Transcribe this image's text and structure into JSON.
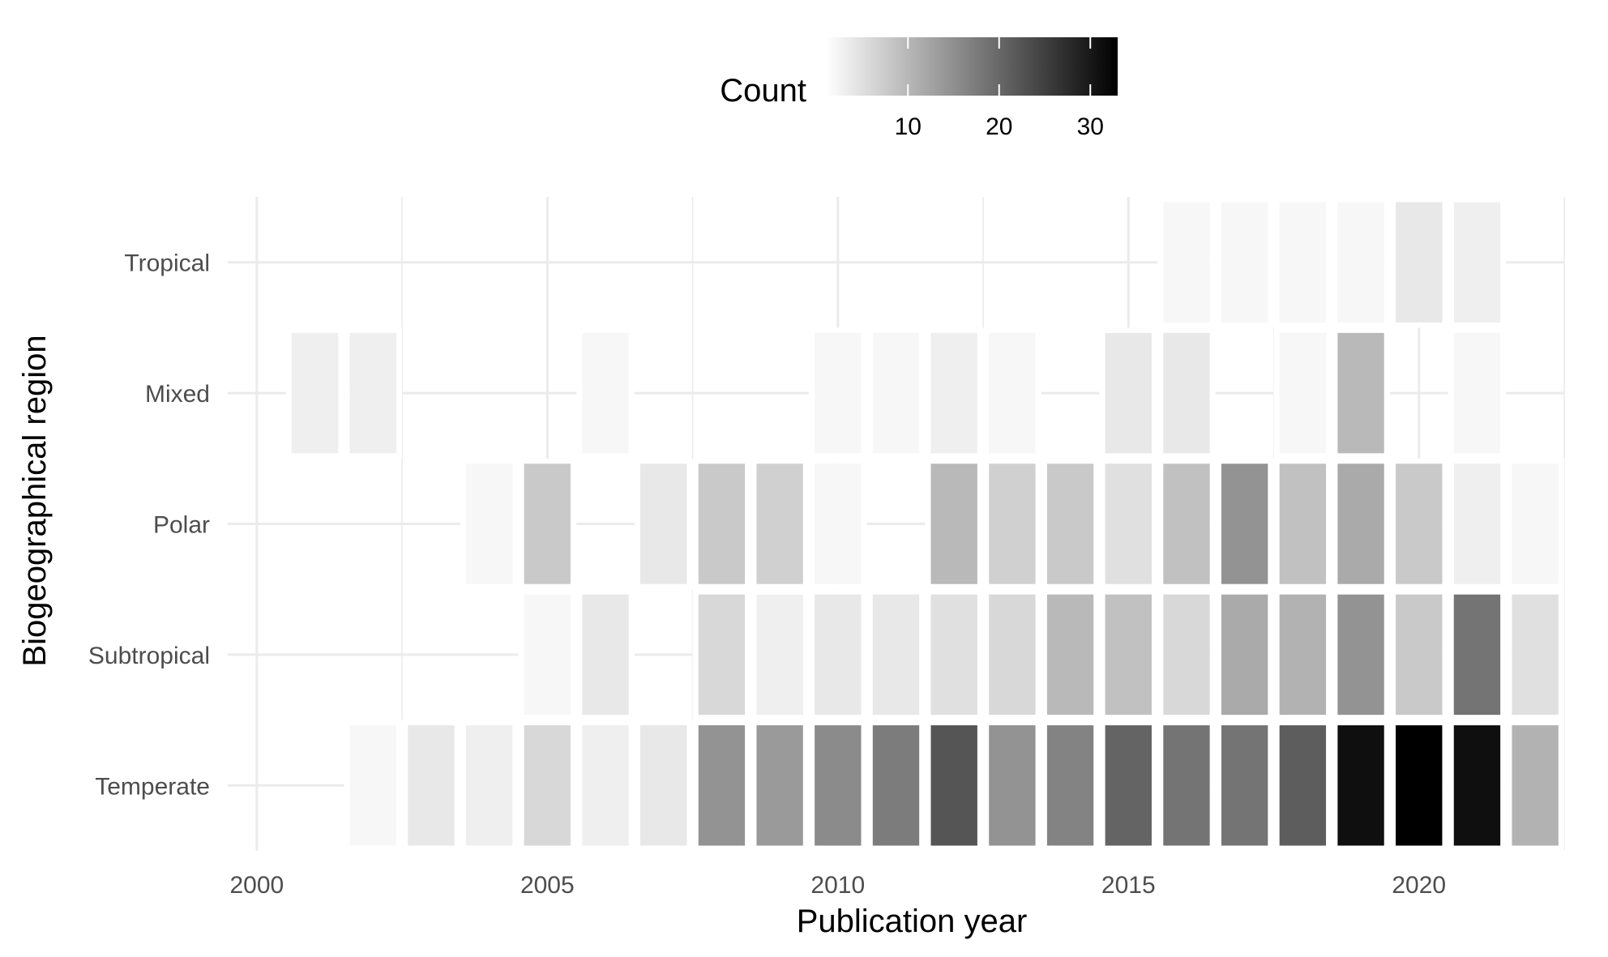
{
  "chart_data": {
    "type": "heatmap",
    "xlabel": "Publication year",
    "ylabel": "Biogeographical region",
    "x": [
      2001,
      2002,
      2003,
      2004,
      2005,
      2006,
      2007,
      2008,
      2009,
      2010,
      2011,
      2012,
      2013,
      2014,
      2015,
      2016,
      2017,
      2018,
      2019,
      2020,
      2021,
      2022
    ],
    "x_ticks": [
      "2000",
      "2005",
      "2010",
      "2015",
      "2020"
    ],
    "x_tick_values": [
      2000,
      2005,
      2010,
      2015,
      2020
    ],
    "xlim": [
      1999.5,
      2022.5
    ],
    "y": [
      "Tropical",
      "Mixed",
      "Polar",
      "Subtropical",
      "Temperate"
    ],
    "values": [
      [
        null,
        null,
        null,
        null,
        null,
        null,
        null,
        null,
        null,
        null,
        null,
        null,
        null,
        null,
        null,
        1,
        1,
        1,
        1,
        3,
        2,
        null
      ],
      [
        2,
        2,
        null,
        null,
        null,
        1,
        null,
        null,
        null,
        1,
        1,
        2,
        1,
        null,
        3,
        3,
        null,
        1,
        9,
        null,
        1,
        null
      ],
      [
        null,
        null,
        null,
        1,
        7,
        null,
        3,
        7,
        6,
        1,
        null,
        9,
        6,
        7,
        4,
        8,
        14,
        8,
        11,
        7,
        2,
        1
      ],
      [
        null,
        null,
        null,
        null,
        1,
        3,
        null,
        5,
        2,
        3,
        3,
        4,
        5,
        9,
        8,
        5,
        11,
        10,
        14,
        7,
        18,
        4
      ],
      [
        null,
        1,
        3,
        2,
        5,
        2,
        3,
        14,
        13,
        15,
        17,
        22,
        14,
        16,
        20,
        18,
        18,
        21,
        31,
        33,
        31,
        10
      ]
    ],
    "colorbar": {
      "title": "Count",
      "ticks": [
        "10",
        "20",
        "30"
      ],
      "tick_values": [
        10,
        20,
        30
      ],
      "range": [
        1,
        33
      ],
      "low_color": "#ffffff",
      "high_color": "#000000"
    },
    "grid": true,
    "legend_position": "top"
  }
}
